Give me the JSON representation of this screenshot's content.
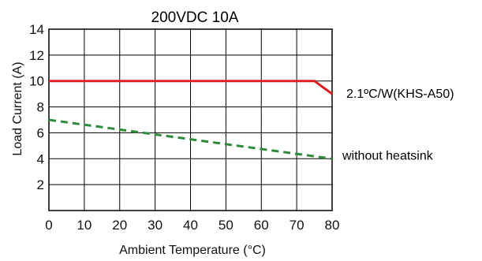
{
  "chart_data": {
    "type": "line",
    "title": "200VDC 10A",
    "xlabel": "Ambient Temperature (°C)",
    "ylabel": "Load Current (A)",
    "xlim": [
      0,
      80
    ],
    "ylim": [
      0,
      14
    ],
    "x_ticks": [
      "0",
      "10",
      "20",
      "30",
      "40",
      "50",
      "60",
      "70",
      "80"
    ],
    "y_ticks": [
      "2",
      "4",
      "6",
      "8",
      "10",
      "12",
      "14"
    ],
    "grid": true,
    "series": [
      {
        "name": "2.1ºC/W(KHS-A50)",
        "color": "#e02020",
        "style": "solid",
        "x": [
          0,
          75,
          80
        ],
        "y": [
          10,
          10,
          9
        ]
      },
      {
        "name": "without heatsink",
        "color": "#2e8b3a",
        "style": "dashed",
        "x": [
          0,
          80
        ],
        "y": [
          7,
          4
        ]
      }
    ]
  }
}
